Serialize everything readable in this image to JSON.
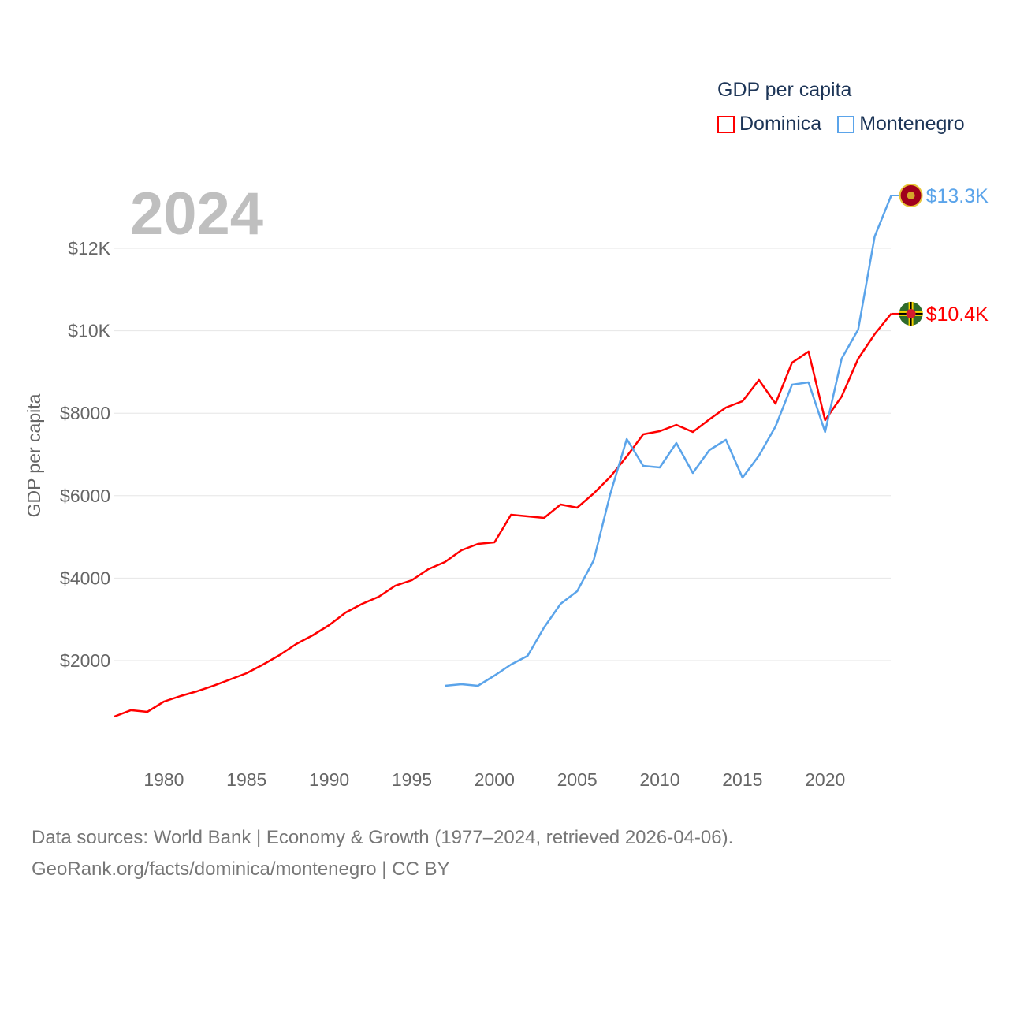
{
  "chart_data": {
    "type": "line",
    "title": "GDP per capita",
    "ylabel": "GDP per capita",
    "xlabel": "",
    "year_label": "2024",
    "ylim": [
      0,
      13500
    ],
    "xlim": [
      1977,
      2024
    ],
    "grid": true,
    "legend_placement": "top-right",
    "y_ticks": [
      {
        "v": 2000,
        "label": "$2000"
      },
      {
        "v": 4000,
        "label": "$4000"
      },
      {
        "v": 6000,
        "label": "$6000"
      },
      {
        "v": 8000,
        "label": "$8000"
      },
      {
        "v": 10000,
        "label": "$10K"
      },
      {
        "v": 12000,
        "label": "$12K"
      }
    ],
    "x_ticks": [
      {
        "v": 1980,
        "label": "1980"
      },
      {
        "v": 1985,
        "label": "1985"
      },
      {
        "v": 1990,
        "label": "1990"
      },
      {
        "v": 1995,
        "label": "1995"
      },
      {
        "v": 2000,
        "label": "2000"
      },
      {
        "v": 2005,
        "label": "2005"
      },
      {
        "v": 2010,
        "label": "2010"
      },
      {
        "v": 2015,
        "label": "2015"
      },
      {
        "v": 2020,
        "label": "2020"
      }
    ],
    "series": [
      {
        "name": "Dominica",
        "color": "#ff0000",
        "end_label": "$10.4K",
        "flag": "dominica",
        "x": [
          1977,
          1978,
          1979,
          1980,
          1981,
          1982,
          1983,
          1984,
          1985,
          1986,
          1987,
          1988,
          1989,
          1990,
          1991,
          1992,
          1993,
          1994,
          1995,
          1996,
          1997,
          1998,
          1999,
          2000,
          2001,
          2002,
          2003,
          2004,
          2005,
          2006,
          2007,
          2008,
          2009,
          2010,
          2011,
          2012,
          2013,
          2014,
          2015,
          2016,
          2017,
          2018,
          2019,
          2020,
          2021,
          2022,
          2023,
          2024
        ],
        "values": [
          642,
          797,
          758,
          1006,
          1140,
          1255,
          1390,
          1541,
          1694,
          1904,
          2134,
          2402,
          2612,
          2860,
          3166,
          3377,
          3549,
          3817,
          3950,
          4218,
          4390,
          4677,
          4830,
          4868,
          5538,
          5500,
          5460,
          5786,
          5710,
          6054,
          6455,
          6952,
          7488,
          7564,
          7717,
          7545,
          7851,
          8138,
          8291,
          8807,
          8234,
          9228,
          9496,
          7832,
          8406,
          9324,
          9917,
          10414
        ]
      },
      {
        "name": "Montenegro",
        "color": "#5ba4ea",
        "end_label": "$13.3K",
        "flag": "montenegro",
        "x": [
          1997,
          1998,
          1999,
          2000,
          2001,
          2002,
          2003,
          2004,
          2005,
          2006,
          2007,
          2008,
          2009,
          2010,
          2011,
          2012,
          2013,
          2014,
          2015,
          2016,
          2017,
          2018,
          2019,
          2020,
          2021,
          2022,
          2023,
          2024
        ],
        "values": [
          1388,
          1426,
          1388,
          1637,
          1904,
          2115,
          2803,
          3377,
          3683,
          4428,
          6034,
          7373,
          6723,
          6685,
          7277,
          6551,
          7105,
          7354,
          6436,
          6971,
          7679,
          8692,
          8750,
          7545,
          9324,
          10031,
          12287,
          13281
        ]
      }
    ]
  },
  "legend": {
    "title": "GDP per capita",
    "items": [
      "Dominica",
      "Montenegro"
    ]
  },
  "footer": {
    "line1": "Data sources: World Bank | Economy & Growth (1977–2024, retrieved 2026-04-06).",
    "line2": "GeoRank.org/facts/dominica/montenegro | CC BY"
  }
}
